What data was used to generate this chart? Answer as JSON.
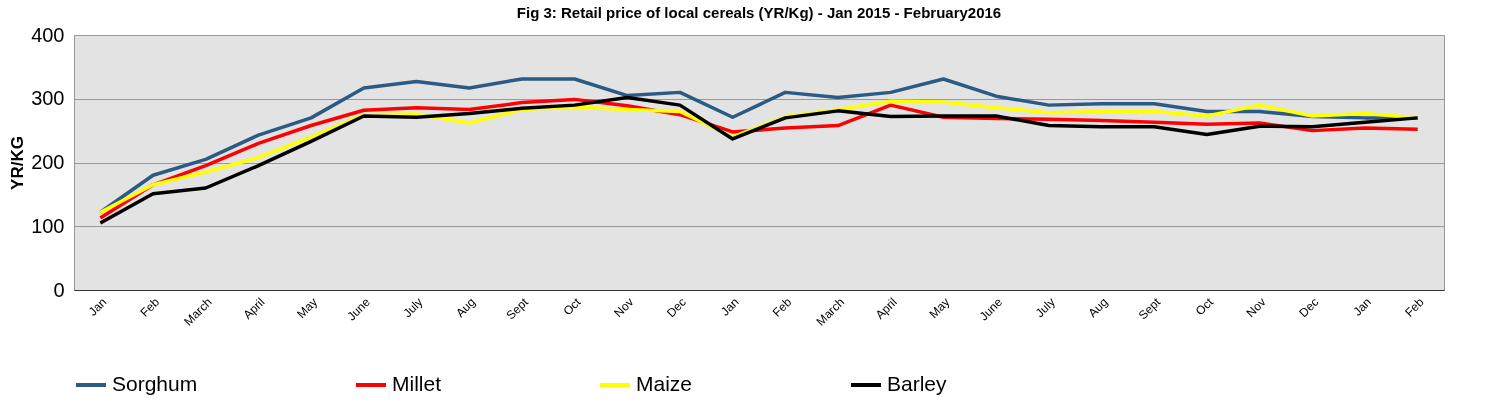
{
  "chart_data": {
    "type": "line",
    "title": "Fig 3: Retail price of local cereals (YR/Kg) - Jan 2015 - February2016",
    "ylabel": "YR/KG",
    "categories": [
      "Jan",
      "Feb",
      "March",
      "April",
      "May",
      "June",
      "July",
      "Aug",
      "Sept",
      "Oct",
      "Nov",
      "Dec",
      "Jan",
      "Feb",
      "March",
      "April",
      "May",
      "June",
      "July",
      "Aug",
      "Sept",
      "Oct",
      "Nov",
      "Dec",
      "Jan",
      "Feb"
    ],
    "series": [
      {
        "name": "Sorghum",
        "color": "#2b5a85",
        "values": [
          122,
          180,
          205,
          243,
          270,
          317,
          327,
          317,
          331,
          331,
          305,
          310,
          271,
          310,
          302,
          310,
          331,
          304,
          290,
          292,
          292,
          280,
          280,
          272,
          270,
          270
        ]
      },
      {
        "name": "Millet",
        "color": "#ff0000",
        "values": [
          113,
          165,
          195,
          230,
          258,
          282,
          286,
          283,
          294,
          299,
          289,
          275,
          248,
          254,
          258,
          290,
          271,
          269,
          268,
          266,
          263,
          260,
          262,
          250,
          254,
          252
        ]
      },
      {
        "name": "Maize",
        "color": "#ffff00",
        "values": [
          122,
          165,
          185,
          208,
          240,
          275,
          276,
          262,
          283,
          287,
          283,
          280,
          240,
          272,
          283,
          296,
          295,
          286,
          278,
          280,
          280,
          273,
          290,
          273,
          277,
          270
        ]
      },
      {
        "name": "Barley",
        "color": "#000000",
        "values": [
          105,
          151,
          160,
          195,
          233,
          273,
          271,
          277,
          285,
          290,
          302,
          290,
          237,
          270,
          281,
          272,
          273,
          273,
          258,
          256,
          256,
          244,
          257,
          256,
          263,
          270
        ]
      }
    ],
    "ylim": [
      0,
      400
    ],
    "yticks": [
      0,
      100,
      200,
      300,
      400
    ],
    "grid": "y",
    "legend": "bottom",
    "marker": "none",
    "line_style": "solid"
  }
}
